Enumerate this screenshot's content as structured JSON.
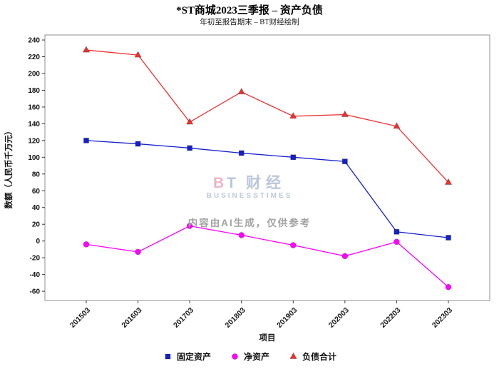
{
  "chart_data": {
    "type": "line",
    "title": "*ST商城2023三季报 – 资产负债",
    "subtitle": "年初至报告期末 – BT财经绘制",
    "xlabel": "项目",
    "ylabel": "数额（人民币千万元）",
    "categories": [
      "201503",
      "201603",
      "201703",
      "201803",
      "201903",
      "202003",
      "202203",
      "202303"
    ],
    "series": [
      {
        "name": "固定资产",
        "marker": "square",
        "color": "#1620c9",
        "values": [
          120,
          116,
          111,
          105,
          100,
          95,
          11,
          4
        ]
      },
      {
        "name": "净资产",
        "marker": "circle",
        "color": "#ff00ff",
        "values": [
          -4,
          -13,
          18,
          7,
          -5,
          -18,
          -1,
          -55
        ]
      },
      {
        "name": "负债合计",
        "marker": "triangle",
        "color": "#f03030",
        "values": [
          228,
          222,
          142,
          178,
          149,
          151,
          137,
          70
        ]
      }
    ],
    "ylim": [
      -60,
      240
    ],
    "ytick_step": 20,
    "grid": false,
    "legend_position": "bottom"
  },
  "watermark": {
    "logo_b": "B",
    "logo_t": "T",
    "logo_cn": "财经",
    "sub_text": "BUSINESSTIMES",
    "ai_note": "内容由AI生成，仅供参考"
  }
}
